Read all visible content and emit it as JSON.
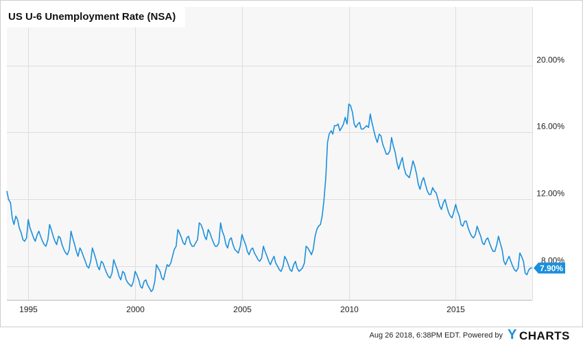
{
  "title": "US U-6 Unemployment Rate (NSA)",
  "footer": {
    "stamp": "Aug 26 2018, 6:38PM EDT.  Powered by",
    "logo_y": "Y",
    "logo_rest": "CHARTS"
  },
  "colors": {
    "line": "#1a8fdc",
    "plot_bg": "#f7f7f7",
    "grid": "#dddddd",
    "axis_text": "#222222",
    "last_badge_bg": "#1a8fdc",
    "last_badge_text": "#ffffff"
  },
  "chart_data": {
    "type": "line",
    "title": "US U-6 Unemployment Rate (NSA)",
    "xlabel": "",
    "ylabel": "",
    "x_unit": "year",
    "xlim": [
      1994.0,
      2018.58
    ],
    "ylim": [
      6.0,
      23.5
    ],
    "x_ticks": [
      1995,
      2000,
      2005,
      2010,
      2015
    ],
    "x_tick_labels": [
      "1995",
      "2000",
      "2005",
      "2010",
      "2015"
    ],
    "y_ticks": [
      8,
      12,
      16,
      20
    ],
    "y_tick_labels": [
      "8.00%",
      "12.00%",
      "16.00%",
      "20.00%"
    ],
    "grid": true,
    "y_axis_side": "right",
    "last_value_label": "7.90%",
    "last_value": 7.9,
    "series": [
      {
        "x": [
          1994.0,
          1994.08,
          1994.17,
          1994.25,
          1994.33,
          1994.42,
          1994.5,
          1994.58,
          1994.67,
          1994.75,
          1994.83,
          1994.92,
          1995.0,
          1995.08,
          1995.17,
          1995.25,
          1995.33,
          1995.42,
          1995.5,
          1995.58,
          1995.67,
          1995.75,
          1995.83,
          1995.92,
          1996.0,
          1996.08,
          1996.17,
          1996.25,
          1996.33,
          1996.42,
          1996.5,
          1996.58,
          1996.67,
          1996.75,
          1996.83,
          1996.92,
          1997.0,
          1997.08,
          1997.17,
          1997.25,
          1997.33,
          1997.42,
          1997.5,
          1997.58,
          1997.67,
          1997.75,
          1997.83,
          1997.92,
          1998.0,
          1998.08,
          1998.17,
          1998.25,
          1998.33,
          1998.42,
          1998.5,
          1998.58,
          1998.67,
          1998.75,
          1998.83,
          1998.92,
          1999.0,
          1999.08,
          1999.17,
          1999.25,
          1999.33,
          1999.42,
          1999.5,
          1999.58,
          1999.67,
          1999.75,
          1999.83,
          1999.92,
          2000.0,
          2000.08,
          2000.17,
          2000.25,
          2000.33,
          2000.42,
          2000.5,
          2000.58,
          2000.67,
          2000.75,
          2000.83,
          2000.92,
          2001.0,
          2001.08,
          2001.17,
          2001.25,
          2001.33,
          2001.42,
          2001.5,
          2001.58,
          2001.67,
          2001.75,
          2001.83,
          2001.92,
          2002.0,
          2002.08,
          2002.17,
          2002.25,
          2002.33,
          2002.42,
          2002.5,
          2002.58,
          2002.67,
          2002.75,
          2002.83,
          2002.92,
          2003.0,
          2003.08,
          2003.17,
          2003.25,
          2003.33,
          2003.42,
          2003.5,
          2003.58,
          2003.67,
          2003.75,
          2003.83,
          2003.92,
          2004.0,
          2004.08,
          2004.17,
          2004.25,
          2004.33,
          2004.42,
          2004.5,
          2004.58,
          2004.67,
          2004.75,
          2004.83,
          2004.92,
          2005.0,
          2005.08,
          2005.17,
          2005.25,
          2005.33,
          2005.42,
          2005.5,
          2005.58,
          2005.67,
          2005.75,
          2005.83,
          2005.92,
          2006.0,
          2006.08,
          2006.17,
          2006.25,
          2006.33,
          2006.42,
          2006.5,
          2006.58,
          2006.67,
          2006.75,
          2006.83,
          2006.92,
          2007.0,
          2007.08,
          2007.17,
          2007.25,
          2007.33,
          2007.42,
          2007.5,
          2007.58,
          2007.67,
          2007.75,
          2007.83,
          2007.92,
          2008.0,
          2008.08,
          2008.17,
          2008.25,
          2008.33,
          2008.42,
          2008.5,
          2008.58,
          2008.67,
          2008.75,
          2008.83,
          2008.92,
          2009.0,
          2009.08,
          2009.17,
          2009.25,
          2009.33,
          2009.42,
          2009.5,
          2009.58,
          2009.67,
          2009.75,
          2009.83,
          2009.92,
          2010.0,
          2010.08,
          2010.17,
          2010.25,
          2010.33,
          2010.42,
          2010.5,
          2010.58,
          2010.67,
          2010.75,
          2010.83,
          2010.92,
          2011.0,
          2011.08,
          2011.17,
          2011.25,
          2011.33,
          2011.42,
          2011.5,
          2011.58,
          2011.67,
          2011.75,
          2011.83,
          2011.92,
          2012.0,
          2012.08,
          2012.17,
          2012.25,
          2012.33,
          2012.42,
          2012.5,
          2012.58,
          2012.67,
          2012.75,
          2012.83,
          2012.92,
          2013.0,
          2013.08,
          2013.17,
          2013.25,
          2013.33,
          2013.42,
          2013.5,
          2013.58,
          2013.67,
          2013.75,
          2013.83,
          2013.92,
          2014.0,
          2014.08,
          2014.17,
          2014.25,
          2014.33,
          2014.42,
          2014.5,
          2014.58,
          2014.67,
          2014.75,
          2014.83,
          2014.92,
          2015.0,
          2015.08,
          2015.17,
          2015.25,
          2015.33,
          2015.42,
          2015.5,
          2015.58,
          2015.67,
          2015.75,
          2015.83,
          2015.92,
          2016.0,
          2016.08,
          2016.17,
          2016.25,
          2016.33,
          2016.42,
          2016.5,
          2016.58,
          2016.67,
          2016.75,
          2016.83,
          2016.92,
          2017.0,
          2017.08,
          2017.17,
          2017.25,
          2017.33,
          2017.42,
          2017.5,
          2017.58,
          2017.67,
          2017.75,
          2017.83,
          2017.92,
          2018.0,
          2018.08,
          2018.17,
          2018.25,
          2018.33,
          2018.42,
          2018.5,
          2018.58
        ],
        "values": [
          12.5,
          12.0,
          11.8,
          10.9,
          10.5,
          11.0,
          10.8,
          10.3,
          10.0,
          9.6,
          9.5,
          9.7,
          10.8,
          10.3,
          10.0,
          9.7,
          9.5,
          9.9,
          10.1,
          9.8,
          9.5,
          9.3,
          9.2,
          9.6,
          10.5,
          10.2,
          9.8,
          9.5,
          9.3,
          9.8,
          9.7,
          9.3,
          9.0,
          8.8,
          8.7,
          9.0,
          10.1,
          9.7,
          9.3,
          8.9,
          8.6,
          9.1,
          8.9,
          8.6,
          8.3,
          8.0,
          7.9,
          8.3,
          9.1,
          8.8,
          8.4,
          8.0,
          7.8,
          8.3,
          8.2,
          7.9,
          7.6,
          7.4,
          7.3,
          7.6,
          8.4,
          8.1,
          7.8,
          7.4,
          7.2,
          7.7,
          7.6,
          7.2,
          7.0,
          6.9,
          6.8,
          7.1,
          7.7,
          7.5,
          7.2,
          6.8,
          6.7,
          7.1,
          7.2,
          6.9,
          6.7,
          6.5,
          6.6,
          7.1,
          8.1,
          7.9,
          7.7,
          7.3,
          7.2,
          7.7,
          8.1,
          8.0,
          8.2,
          8.6,
          9.0,
          9.2,
          10.2,
          10.0,
          9.7,
          9.4,
          9.3,
          9.7,
          9.8,
          9.4,
          9.2,
          9.2,
          9.4,
          9.6,
          10.6,
          10.5,
          10.2,
          9.8,
          9.6,
          10.2,
          10.0,
          9.7,
          9.4,
          9.2,
          9.2,
          9.4,
          10.6,
          10.1,
          9.8,
          9.3,
          9.1,
          9.6,
          9.7,
          9.3,
          9.0,
          8.9,
          8.8,
          9.2,
          9.9,
          9.6,
          9.3,
          8.9,
          8.7,
          9.0,
          9.1,
          8.8,
          8.6,
          8.4,
          8.3,
          8.5,
          9.2,
          8.9,
          8.6,
          8.3,
          8.1,
          8.4,
          8.6,
          8.2,
          8.0,
          7.8,
          7.7,
          8.0,
          8.6,
          8.4,
          8.1,
          7.8,
          7.7,
          8.1,
          8.3,
          7.9,
          7.7,
          7.8,
          7.9,
          8.2,
          9.2,
          9.1,
          8.9,
          8.7,
          9.0,
          9.8,
          10.2,
          10.4,
          10.5,
          11.0,
          11.9,
          13.3,
          15.4,
          15.9,
          16.1,
          15.9,
          16.4,
          16.4,
          16.5,
          16.1,
          16.3,
          16.5,
          16.9,
          16.5,
          17.7,
          17.6,
          17.2,
          16.5,
          16.3,
          16.5,
          16.6,
          16.2,
          16.2,
          16.3,
          16.4,
          16.3,
          17.1,
          16.6,
          16.1,
          15.7,
          15.4,
          15.9,
          15.8,
          15.3,
          15.0,
          14.7,
          14.7,
          14.9,
          15.7,
          15.2,
          14.8,
          14.2,
          13.8,
          14.2,
          14.5,
          13.9,
          13.5,
          13.4,
          13.3,
          13.8,
          14.3,
          14.0,
          13.5,
          12.9,
          12.6,
          13.1,
          13.3,
          12.9,
          12.5,
          12.3,
          12.3,
          12.7,
          12.5,
          12.4,
          12.0,
          11.6,
          11.4,
          11.8,
          12.0,
          11.6,
          11.2,
          11.0,
          10.9,
          11.3,
          11.7,
          11.3,
          11.0,
          10.5,
          10.4,
          10.7,
          10.7,
          10.3,
          10.0,
          9.8,
          9.7,
          9.9,
          10.4,
          10.1,
          9.8,
          9.4,
          9.3,
          9.6,
          9.7,
          9.4,
          9.1,
          8.9,
          8.9,
          9.3,
          9.8,
          9.4,
          9.0,
          8.3,
          8.1,
          8.4,
          8.6,
          8.3,
          8.0,
          7.8,
          7.7,
          7.9,
          8.8,
          8.6,
          8.3,
          7.6,
          7.5,
          7.8,
          7.9,
          7.9
        ]
      }
    ]
  }
}
